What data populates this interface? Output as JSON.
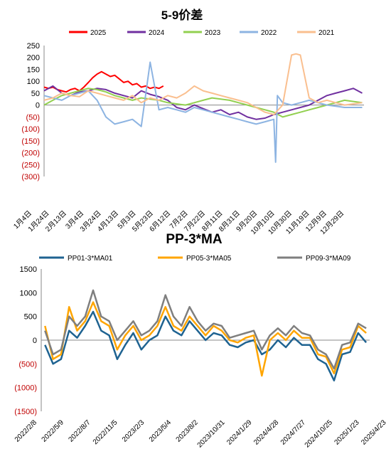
{
  "chart_data": [
    {
      "type": "line",
      "title": "5-9价差",
      "xlabel": "",
      "ylabel": "",
      "ylim": [
        -300,
        250
      ],
      "y_ticks": [
        250,
        200,
        150,
        100,
        50,
        0,
        -50,
        -100,
        -150,
        -200,
        -250,
        -300
      ],
      "y_tick_labels": [
        "250",
        "200",
        "150",
        "100",
        "50",
        "0",
        "(50)",
        "(100)",
        "(150)",
        "(200)",
        "(250)",
        "(300)"
      ],
      "x_tick_labels": [
        "1月4日",
        "1月24日",
        "2月13日",
        "3月4日",
        "3月24日",
        "4月13日",
        "5月3日",
        "5月23日",
        "6月12日",
        "7月2日",
        "7月22日",
        "8月11日",
        "8月31日",
        "9月20日",
        "10月10日",
        "10月30日",
        "11月19日",
        "12月9日",
        "12月29日"
      ],
      "legend_position": "top",
      "grid": false,
      "series": [
        {
          "name": "2025",
          "color": "#ff0000",
          "x": [
            0,
            5,
            10,
            15,
            20,
            25,
            30,
            35,
            40,
            45,
            50,
            55,
            60,
            65,
            70,
            75,
            80,
            85,
            90,
            95,
            100,
            105,
            110,
            115,
            120,
            125,
            130,
            135
          ],
          "values": [
            75,
            70,
            75,
            65,
            60,
            55,
            65,
            70,
            60,
            75,
            95,
            115,
            130,
            140,
            130,
            120,
            125,
            110,
            95,
            100,
            85,
            90,
            75,
            80,
            70,
            75,
            70,
            80
          ]
        },
        {
          "name": "2024",
          "color": "#7030a0",
          "x": [
            0,
            10,
            20,
            30,
            40,
            50,
            60,
            70,
            80,
            90,
            100,
            110,
            120,
            130,
            140,
            150,
            160,
            170,
            180,
            190,
            200,
            210,
            220,
            230,
            240,
            250,
            260,
            270,
            280,
            290,
            300,
            310,
            320,
            330,
            340,
            350,
            360
          ],
          "values": [
            60,
            80,
            50,
            40,
            55,
            60,
            70,
            65,
            50,
            40,
            30,
            60,
            45,
            35,
            20,
            -10,
            -20,
            0,
            -15,
            -30,
            -20,
            -40,
            -30,
            -50,
            -60,
            -55,
            -40,
            -30,
            -20,
            -10,
            0,
            20,
            40,
            50,
            60,
            70,
            50
          ]
        },
        {
          "name": "2023",
          "color": "#92d050",
          "x": [
            0,
            10,
            20,
            30,
            40,
            50,
            60,
            70,
            80,
            90,
            100,
            110,
            120,
            130,
            140,
            150,
            160,
            170,
            180,
            190,
            200,
            210,
            220,
            230,
            240,
            250,
            260,
            270,
            280,
            290,
            300,
            310,
            320,
            330,
            340,
            350,
            360
          ],
          "values": [
            0,
            20,
            40,
            50,
            60,
            70,
            65,
            55,
            40,
            30,
            20,
            30,
            25,
            20,
            10,
            5,
            0,
            10,
            20,
            30,
            25,
            20,
            10,
            0,
            -10,
            -20,
            -30,
            -50,
            -40,
            -30,
            -20,
            -10,
            0,
            10,
            20,
            15,
            10
          ]
        },
        {
          "name": "2022",
          "color": "#8db4e2",
          "x": [
            0,
            10,
            20,
            30,
            40,
            50,
            60,
            70,
            80,
            90,
            100,
            110,
            120,
            130,
            140,
            150,
            160,
            170,
            180,
            190,
            200,
            210,
            220,
            230,
            240,
            250,
            260,
            262,
            264,
            270,
            280,
            290,
            300,
            310,
            320,
            330,
            340,
            350,
            360
          ],
          "values": [
            40,
            30,
            20,
            40,
            50,
            60,
            20,
            -50,
            -80,
            -70,
            -60,
            -90,
            180,
            -20,
            -10,
            -20,
            -30,
            -10,
            -20,
            -30,
            -40,
            -50,
            -60,
            -70,
            -80,
            -70,
            -60,
            -240,
            40,
            10,
            0,
            10,
            20,
            10,
            0,
            -5,
            -10,
            -10,
            -10
          ]
        },
        {
          "name": "2021",
          "color": "#fabf8f",
          "x": [
            0,
            10,
            20,
            30,
            40,
            50,
            60,
            70,
            80,
            90,
            100,
            110,
            120,
            130,
            140,
            150,
            160,
            170,
            180,
            190,
            200,
            210,
            220,
            230,
            240,
            250,
            260,
            270,
            280,
            285,
            290,
            300,
            310,
            320,
            330,
            340,
            350,
            360
          ],
          "values": [
            20,
            30,
            50,
            40,
            35,
            60,
            50,
            40,
            30,
            20,
            40,
            10,
            30,
            20,
            40,
            30,
            50,
            80,
            60,
            50,
            40,
            30,
            20,
            10,
            -10,
            -30,
            -40,
            0,
            210,
            215,
            210,
            30,
            10,
            20,
            10,
            0,
            5,
            10
          ]
        }
      ]
    },
    {
      "type": "line",
      "title": "PP-3*MA",
      "xlabel": "",
      "ylabel": "",
      "ylim": [
        -1500,
        1500
      ],
      "y_ticks": [
        1500,
        1000,
        500,
        0,
        -500,
        -1000,
        -1500
      ],
      "y_tick_labels": [
        "1500",
        "1000",
        "500",
        "0",
        "(500)",
        "(1000)",
        "(1500)"
      ],
      "x_tick_labels": [
        "2022/2/8",
        "2022/5/9",
        "2022/8/7",
        "2022/11/5",
        "2023/2/3",
        "2023/5/4",
        "2023/8/2",
        "2023/10/31",
        "2024/1/29",
        "2024/4/28",
        "2024/7/27",
        "2024/10/25",
        "2025/1/23",
        "2025/4/23"
      ],
      "legend_position": "top",
      "grid": false,
      "series": [
        {
          "name": "PP01-3*MA01",
          "color": "#1f6391",
          "x": [
            "2022/2/8",
            "2022/3/10",
            "2022/4/9",
            "2022/5/9",
            "2022/6/8",
            "2022/7/8",
            "2022/8/7",
            "2022/9/6",
            "2022/10/6",
            "2022/11/5",
            "2022/12/5",
            "2023/1/4",
            "2023/2/3",
            "2023/3/5",
            "2023/4/4",
            "2023/5/4",
            "2023/6/3",
            "2023/7/3",
            "2023/8/2",
            "2023/9/1",
            "2023/10/1",
            "2023/10/31",
            "2023/11/30",
            "2023/12/30",
            "2024/1/29",
            "2024/2/28",
            "2024/3/29",
            "2024/4/28",
            "2024/5/28",
            "2024/6/27",
            "2024/7/27",
            "2024/8/26",
            "2024/9/25",
            "2024/10/25",
            "2024/11/24",
            "2024/12/24",
            "2025/1/23",
            "2025/2/22",
            "2025/3/24",
            "2025/4/23",
            "2025/5/23"
          ],
          "values": [
            -100,
            -500,
            -400,
            200,
            50,
            300,
            600,
            200,
            100,
            -400,
            -100,
            150,
            -200,
            0,
            100,
            500,
            200,
            100,
            400,
            200,
            0,
            150,
            100,
            -100,
            -150,
            -50,
            0,
            -300,
            -200,
            0,
            -150,
            50,
            -100,
            -100,
            -400,
            -500,
            -850,
            -300,
            -250,
            150,
            -50
          ]
        },
        {
          "name": "PP05-3*MA05",
          "color": "#ffa500",
          "x": [
            "2022/2/8",
            "2022/3/10",
            "2022/4/9",
            "2022/5/9",
            "2022/6/8",
            "2022/7/8",
            "2022/8/7",
            "2022/9/6",
            "2022/10/6",
            "2022/11/5",
            "2022/12/5",
            "2023/1/4",
            "2023/2/3",
            "2023/3/5",
            "2023/4/4",
            "2023/5/4",
            "2023/6/3",
            "2023/7/3",
            "2023/8/2",
            "2023/9/1",
            "2023/10/1",
            "2023/10/31",
            "2023/11/30",
            "2023/12/30",
            "2024/1/29",
            "2024/2/28",
            "2024/3/29",
            "2024/4/28",
            "2024/5/28",
            "2024/6/27",
            "2024/7/27",
            "2024/8/26",
            "2024/9/25",
            "2024/10/25",
            "2024/11/24",
            "2024/12/24",
            "2025/1/23",
            "2025/2/22",
            "2025/3/24",
            "2025/4/23",
            "2025/5/23"
          ],
          "values": [
            300,
            -400,
            -300,
            700,
            200,
            400,
            800,
            400,
            300,
            -200,
            100,
            300,
            0,
            100,
            300,
            700,
            300,
            200,
            500,
            300,
            100,
            300,
            200,
            0,
            -50,
            50,
            100,
            -750,
            0,
            150,
            0,
            200,
            50,
            50,
            -300,
            -350,
            -700,
            -200,
            -150,
            300,
            150
          ]
        },
        {
          "name": "PP09-3*MA09",
          "color": "#7f7f7f",
          "x": [
            "2022/2/8",
            "2022/3/10",
            "2022/4/9",
            "2022/5/9",
            "2022/6/8",
            "2022/7/8",
            "2022/8/7",
            "2022/9/6",
            "2022/10/6",
            "2022/11/5",
            "2022/12/5",
            "2023/1/4",
            "2023/2/3",
            "2023/3/5",
            "2023/4/4",
            "2023/5/4",
            "2023/6/3",
            "2023/7/3",
            "2023/8/2",
            "2023/9/1",
            "2023/10/1",
            "2023/10/31",
            "2023/11/30",
            "2023/12/30",
            "2024/1/29",
            "2024/2/28",
            "2024/3/29",
            "2024/4/28",
            "2024/5/28",
            "2024/6/27",
            "2024/7/27",
            "2024/8/26",
            "2024/9/25",
            "2024/10/25",
            "2024/11/24",
            "2024/12/24",
            "2025/1/23",
            "2025/2/22",
            "2025/3/24",
            "2025/4/23",
            "2025/5/23"
          ],
          "values": [
            200,
            -300,
            -200,
            500,
            300,
            500,
            1050,
            500,
            400,
            0,
            200,
            400,
            100,
            200,
            400,
            950,
            500,
            300,
            700,
            400,
            200,
            350,
            300,
            50,
            100,
            150,
            200,
            -200,
            100,
            250,
            100,
            300,
            150,
            100,
            -200,
            -300,
            -600,
            -100,
            -50,
            350,
            250
          ]
        }
      ]
    }
  ]
}
